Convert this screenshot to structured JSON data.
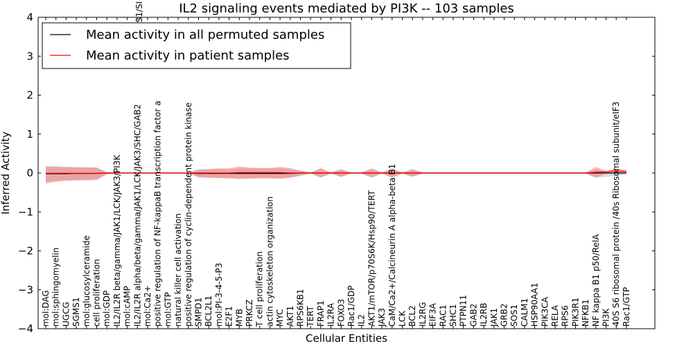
{
  "chart_data": {
    "type": "line",
    "title": "IL2 signaling events mediated by PI3K -- 103 samples",
    "xlabel": "Cellular Entities",
    "ylabel": "Inferred Activity",
    "ylim": [
      -4,
      4
    ],
    "yticks": [
      "4",
      "3",
      "2",
      "1",
      "0",
      "−1",
      "−2",
      "−3",
      "−4"
    ],
    "legend_position": "top-left",
    "categories": [
      "mol:DAG",
      "mol:sphingomyelin",
      "UGCG",
      "SGMS1",
      "mol:glucosylceramide",
      "cell proliferation",
      "mol:GDP",
      "IL2/IL2R beta/gamma/JAK1/LCK/JAK3/PI3K",
      "mol:cAMP",
      "IL2/IL2R alpha/beta/gamma/JAK1/LCK/JAK3/SHC/GAB2",
      "mol:Ca2+",
      "positive regulation of NF-kappaB transcription factor activity",
      "mol:GTP",
      "natural killer cell activation",
      "positive regulation of cyclin-dependent protein kinase",
      "SMPD1",
      "BCL2L1",
      "mol:PI-3-4-5-P3",
      "E2F1",
      "MYB",
      "PRKCZ",
      "T cell proliferation",
      "actin cytoskeleton organization",
      "MYC",
      "AKT1",
      "RPS6KB1",
      "TERT",
      "FRAP1",
      "IL2RA",
      "FOXO3",
      "Rac1/GDP",
      "IL2",
      "AKT1/mTOR/p70S6K/Hsp90/TERT",
      "JAK3",
      "CaM/Ca2+/Calcineurin A alpha-beta B1",
      "LCK",
      "BCL2",
      "IL2RG",
      "EIF3A",
      "RAC1",
      "SHC1",
      "PTPN11",
      "GAB2",
      "IL2RB",
      "JAK1",
      "GRB2",
      "SOS1",
      "CALM1",
      "HSP90AA1",
      "PIK3CA",
      "RELA",
      "RPS6",
      "PIK3R1",
      "NFKB1",
      "NF kappa B1 p50/RelA",
      "PI3K",
      "40S S6 ribosomal protein /40s Ribosomal subunit/eIF3",
      "Rac1/GTP"
    ],
    "visible_label_text": {
      "IL2/IL2R alpha/beta/gamma/JAK1/LCK/JAK3/SHC/GAB2": "IL2/IL2R alpha/beta/gamma/JAK1/LCK/JAK3/SHC/GAB2",
      "positive regulation of NF-kappaB transcription factor activity": "positive regulation of NF-kappaB transcription factor a",
      "AKT1/mTOR/p70S6K/Hsp90/TERT": "AKT1/mTOR/p70S6K/Hsp90/TERT",
      "40S S6 ribosomal protein /40s Ribosomal subunit/eIF3": "40S S6 ribosomal protein /40s Ribosomal subunit/eIF3"
    },
    "top_clipped_label": "S1/SI",
    "series": [
      {
        "name": "Mean activity in all permuted samples",
        "color": "#000000",
        "values": [
          -0.02,
          -0.02,
          -0.02,
          -0.01,
          -0.01,
          -0.01,
          0.0,
          0.0,
          0.0,
          0.0,
          0.0,
          0.0,
          0.0,
          0.0,
          0.0,
          -0.01,
          -0.01,
          -0.01,
          -0.01,
          -0.01,
          -0.01,
          -0.01,
          -0.01,
          -0.01,
          -0.01,
          0.0,
          0.0,
          0.0,
          0.0,
          0.0,
          0.0,
          0.0,
          0.0,
          0.0,
          0.0,
          0.0,
          0.0,
          0.0,
          0.0,
          0.0,
          0.0,
          0.0,
          0.0,
          0.0,
          0.0,
          0.0,
          0.0,
          0.0,
          0.0,
          0.0,
          0.0,
          0.0,
          0.0,
          0.0,
          0.0,
          0.0,
          0.0,
          0.0
        ],
        "band_upper": [
          0.17,
          0.17,
          0.16,
          0.15,
          0.15,
          0.14,
          0.02,
          0.01,
          0.01,
          0.01,
          0.01,
          0.01,
          0.01,
          0.01,
          0.01,
          0.1,
          0.1,
          0.1,
          0.1,
          0.12,
          0.12,
          0.12,
          0.12,
          0.12,
          0.1,
          0.06,
          0.02,
          0.1,
          0.02,
          0.08,
          0.02,
          0.02,
          0.1,
          0.02,
          0.1,
          0.02,
          0.08,
          0.02,
          0.02,
          0.02,
          0.02,
          0.02,
          0.02,
          0.02,
          0.02,
          0.02,
          0.02,
          0.02,
          0.02,
          0.02,
          0.02,
          0.02,
          0.02,
          0.02,
          0.1,
          0.04,
          0.1,
          0.06
        ],
        "band_lower": [
          -0.22,
          -0.2,
          -0.19,
          -0.18,
          -0.17,
          -0.16,
          -0.03,
          -0.01,
          -0.01,
          -0.01,
          -0.01,
          -0.01,
          -0.01,
          -0.01,
          -0.01,
          -0.12,
          -0.12,
          -0.12,
          -0.12,
          -0.13,
          -0.13,
          -0.13,
          -0.13,
          -0.13,
          -0.12,
          -0.08,
          -0.02,
          -0.12,
          -0.02,
          -0.1,
          -0.02,
          -0.02,
          -0.12,
          -0.02,
          -0.12,
          -0.02,
          -0.1,
          -0.02,
          -0.02,
          -0.02,
          -0.02,
          -0.02,
          -0.02,
          -0.02,
          -0.02,
          -0.02,
          -0.02,
          -0.02,
          -0.02,
          -0.02,
          -0.02,
          -0.02,
          -0.02,
          -0.02,
          -0.12,
          -0.1,
          -0.08,
          -0.04
        ]
      },
      {
        "name": "Mean activity in patient samples",
        "color": "#ff0000",
        "values": [
          -0.01,
          -0.01,
          -0.01,
          -0.01,
          -0.01,
          -0.01,
          0.0,
          0.0,
          0.0,
          0.0,
          0.0,
          0.0,
          0.0,
          0.0,
          0.0,
          0.0,
          0.0,
          0.0,
          0.0,
          0.01,
          0.01,
          0.01,
          0.01,
          0.01,
          0.0,
          0.0,
          0.0,
          0.0,
          0.0,
          0.0,
          0.0,
          0.0,
          0.0,
          0.0,
          0.0,
          0.0,
          0.0,
          0.0,
          0.0,
          0.0,
          0.0,
          0.0,
          0.0,
          0.0,
          0.0,
          0.0,
          0.0,
          0.0,
          0.0,
          0.0,
          0.0,
          0.0,
          0.0,
          0.0,
          0.02,
          0.03,
          0.05,
          0.04
        ],
        "band_upper": [
          0.17,
          0.16,
          0.15,
          0.15,
          0.14,
          0.14,
          0.02,
          0.01,
          0.01,
          0.01,
          0.01,
          0.01,
          0.01,
          0.01,
          0.01,
          0.08,
          0.1,
          0.12,
          0.12,
          0.17,
          0.14,
          0.13,
          0.13,
          0.16,
          0.13,
          0.06,
          0.01,
          0.13,
          0.01,
          0.1,
          0.01,
          0.01,
          0.12,
          0.01,
          0.12,
          0.01,
          0.1,
          0.01,
          0.01,
          0.01,
          0.01,
          0.01,
          0.01,
          0.01,
          0.01,
          0.01,
          0.01,
          0.01,
          0.01,
          0.01,
          0.01,
          0.01,
          0.01,
          0.01,
          0.16,
          0.06,
          0.12,
          0.08
        ],
        "band_lower": [
          -0.27,
          -0.23,
          -0.2,
          -0.19,
          -0.19,
          -0.18,
          -0.03,
          -0.01,
          -0.01,
          -0.01,
          -0.01,
          -0.01,
          -0.01,
          -0.01,
          -0.01,
          -0.1,
          -0.12,
          -0.13,
          -0.14,
          -0.16,
          -0.15,
          -0.14,
          -0.14,
          -0.15,
          -0.12,
          -0.06,
          -0.01,
          -0.11,
          -0.01,
          -0.1,
          -0.01,
          -0.01,
          -0.11,
          -0.01,
          -0.11,
          -0.01,
          -0.09,
          -0.01,
          -0.01,
          -0.01,
          -0.01,
          -0.01,
          -0.01,
          -0.01,
          -0.01,
          -0.01,
          -0.01,
          -0.01,
          -0.01,
          -0.01,
          -0.01,
          -0.01,
          -0.01,
          -0.01,
          -0.12,
          -0.02,
          0.0,
          0.0
        ]
      }
    ]
  }
}
